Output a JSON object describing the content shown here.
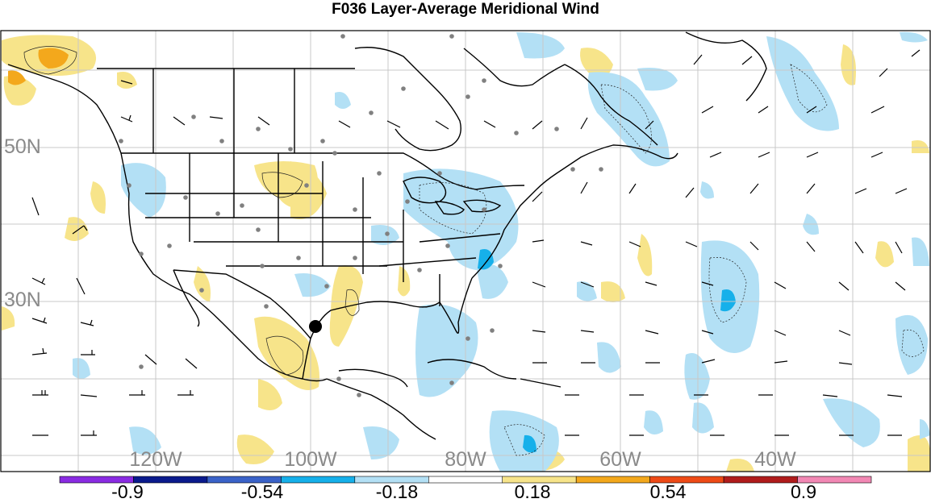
{
  "title": "F036 Layer-Average Meridional Wind",
  "lat_labels": [
    "50N",
    "30N"
  ],
  "lon_labels": [
    "120W",
    "100W",
    "80W",
    "60W",
    "40W"
  ],
  "colorbar": {
    "colors": [
      "#8a2be2",
      "#0a1a8c",
      "#3a62c8",
      "#16b0ea",
      "#b3e0f5",
      "#ffffff",
      "#f7e48a",
      "#f3a81c",
      "#ee4a16",
      "#b01c1c",
      "#f288b4"
    ],
    "labels": [
      "-0.9",
      "-0.54",
      "-0.18",
      "0.18",
      "0.54",
      "0.9"
    ]
  },
  "colors": {
    "neg_light": "#b3e0f5",
    "neg_mid": "#16b0ea",
    "pos_light": "#f7e48a",
    "pos_mid": "#f3a81c",
    "grid": "#c8c8c8",
    "station": "#808080"
  }
}
